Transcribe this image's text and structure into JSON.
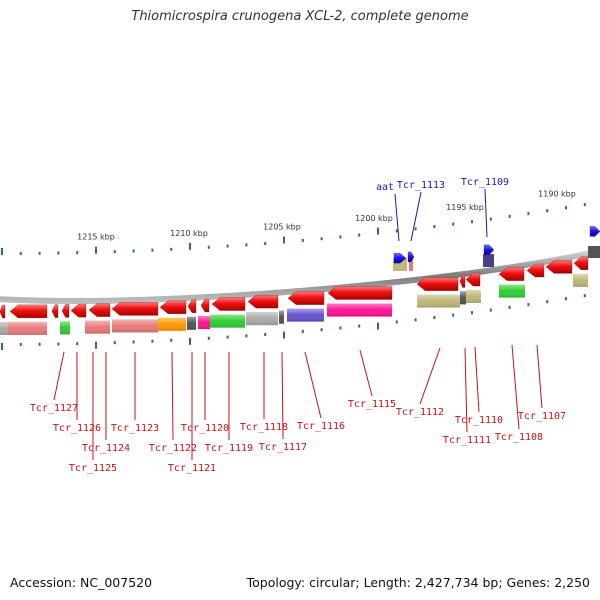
{
  "header": {
    "title": "Thiomicrospira crunogena XCL-2, complete genome"
  },
  "footer": {
    "accession": "Accession: NC_007520",
    "summary": "Topology: circular; Length: 2,427,734 bp; Genes: 2,250"
  },
  "colors": {
    "backbone": "#8a8a8a",
    "gene_arrow": "#ee1111",
    "tick": "#2a7a2a",
    "bottom_label": "#cc1111",
    "top_label": "#1a1aaa",
    "blue_gene": "#1515ee"
  },
  "scale": {
    "label_color": "#333333",
    "ticks": [
      {
        "label": "1215 kbp"
      },
      {
        "label": "1210 kbp"
      },
      {
        "label": "1205 kbp"
      },
      {
        "label": "1200 kbp"
      },
      {
        "label": "1195 kbp"
      },
      {
        "label": "1190 kbp"
      }
    ]
  },
  "top_genes": [
    {
      "label": "aat",
      "color": "#1a1aaa"
    },
    {
      "label": "Tcr_1113",
      "color": "#1a1aaa"
    },
    {
      "label": "Tcr_1109",
      "color": "#1a1aaa"
    }
  ],
  "bottom_genes": [
    {
      "label": "Tcr_1127"
    },
    {
      "label": "Tcr_1126"
    },
    {
      "label": "Tcr_1125"
    },
    {
      "label": "Tcr_1124"
    },
    {
      "label": "Tcr_1123"
    },
    {
      "label": "Tcr_1122"
    },
    {
      "label": "Tcr_1121"
    },
    {
      "label": "Tcr_1120"
    },
    {
      "label": "Tcr_1119"
    },
    {
      "label": "Tcr_1118"
    },
    {
      "label": "Tcr_1117"
    },
    {
      "label": "Tcr_1116"
    },
    {
      "label": "Tcr_1115"
    },
    {
      "label": "Tcr_1112"
    },
    {
      "label": "Tcr_1111"
    },
    {
      "label": "Tcr_1110"
    },
    {
      "label": "Tcr_1108"
    },
    {
      "label": "Tcr_1107"
    }
  ],
  "cog_colors": [
    "#e87a7a",
    "#ff9900",
    "#555555",
    "#ff1493",
    "#33cc33",
    "#aaaaaa",
    "#6655cc",
    "#bfb878",
    "#4a3f8a",
    "#222222"
  ]
}
